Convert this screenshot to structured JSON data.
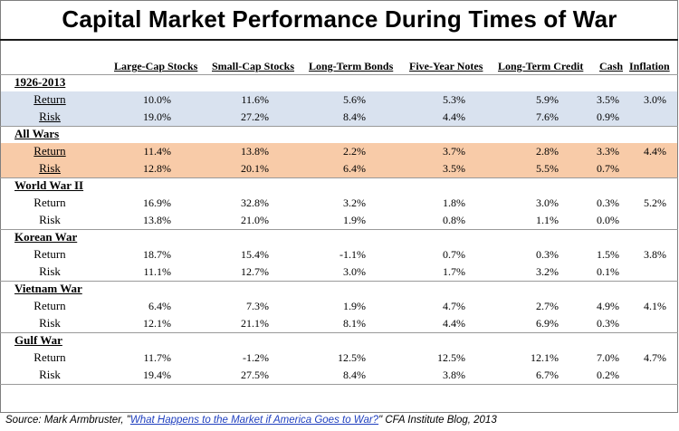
{
  "title": "Capital Market Performance During Times of War",
  "chart_data": {
    "type": "table",
    "columns": [
      "Large-Cap Stocks",
      "Small-Cap Stocks",
      "Long-Term Bonds",
      "Five-Year Notes",
      "Long-Term Credit",
      "Cash",
      "Inflation"
    ],
    "groups": [
      {
        "name": "1926-2013",
        "highlight": "#d9e2ef",
        "rows": [
          {
            "label": "Return",
            "values": [
              "10.0%",
              "11.6%",
              "5.6%",
              "5.3%",
              "5.9%",
              "3.5%",
              "3.0%"
            ]
          },
          {
            "label": "Risk",
            "values": [
              "19.0%",
              "27.2%",
              "8.4%",
              "4.4%",
              "7.6%",
              "0.9%",
              ""
            ]
          }
        ]
      },
      {
        "name": "All Wars",
        "highlight": "#f8cba8",
        "rows": [
          {
            "label": "Return",
            "values": [
              "11.4%",
              "13.8%",
              "2.2%",
              "3.7%",
              "2.8%",
              "3.3%",
              "4.4%"
            ]
          },
          {
            "label": "Risk",
            "values": [
              "12.8%",
              "20.1%",
              "6.4%",
              "3.5%",
              "5.5%",
              "0.7%",
              ""
            ]
          }
        ]
      },
      {
        "name": "World War II",
        "highlight": "",
        "rows": [
          {
            "label": "Return",
            "values": [
              "16.9%",
              "32.8%",
              "3.2%",
              "1.8%",
              "3.0%",
              "0.3%",
              "5.2%"
            ]
          },
          {
            "label": "Risk",
            "values": [
              "13.8%",
              "21.0%",
              "1.9%",
              "0.8%",
              "1.1%",
              "0.0%",
              ""
            ]
          }
        ]
      },
      {
        "name": "Korean War",
        "highlight": "",
        "rows": [
          {
            "label": "Return",
            "values": [
              "18.7%",
              "15.4%",
              "-1.1%",
              "0.7%",
              "0.3%",
              "1.5%",
              "3.8%"
            ]
          },
          {
            "label": "Risk",
            "values": [
              "11.1%",
              "12.7%",
              "3.0%",
              "1.7%",
              "3.2%",
              "0.1%",
              ""
            ]
          }
        ]
      },
      {
        "name": "Vietnam War",
        "highlight": "",
        "rows": [
          {
            "label": "Return",
            "values": [
              "6.4%",
              "7.3%",
              "1.9%",
              "4.7%",
              "2.7%",
              "4.9%",
              "4.1%"
            ]
          },
          {
            "label": "Risk",
            "values": [
              "12.1%",
              "21.1%",
              "8.1%",
              "4.4%",
              "6.9%",
              "0.3%",
              ""
            ]
          }
        ]
      },
      {
        "name": "Gulf War",
        "highlight": "",
        "rows": [
          {
            "label": "Return",
            "values": [
              "11.7%",
              "-1.2%",
              "12.5%",
              "12.5%",
              "12.1%",
              "7.0%",
              "4.7%"
            ]
          },
          {
            "label": "Risk",
            "values": [
              "19.4%",
              "27.5%",
              "8.4%",
              "3.8%",
              "6.7%",
              "0.2%",
              ""
            ]
          }
        ]
      }
    ]
  },
  "source": {
    "prefix": "Source: Mark Armbruster, \"",
    "link_text": "What Happens to the Market if America Goes to War?",
    "suffix": "\" CFA Institute Blog, 2013"
  }
}
